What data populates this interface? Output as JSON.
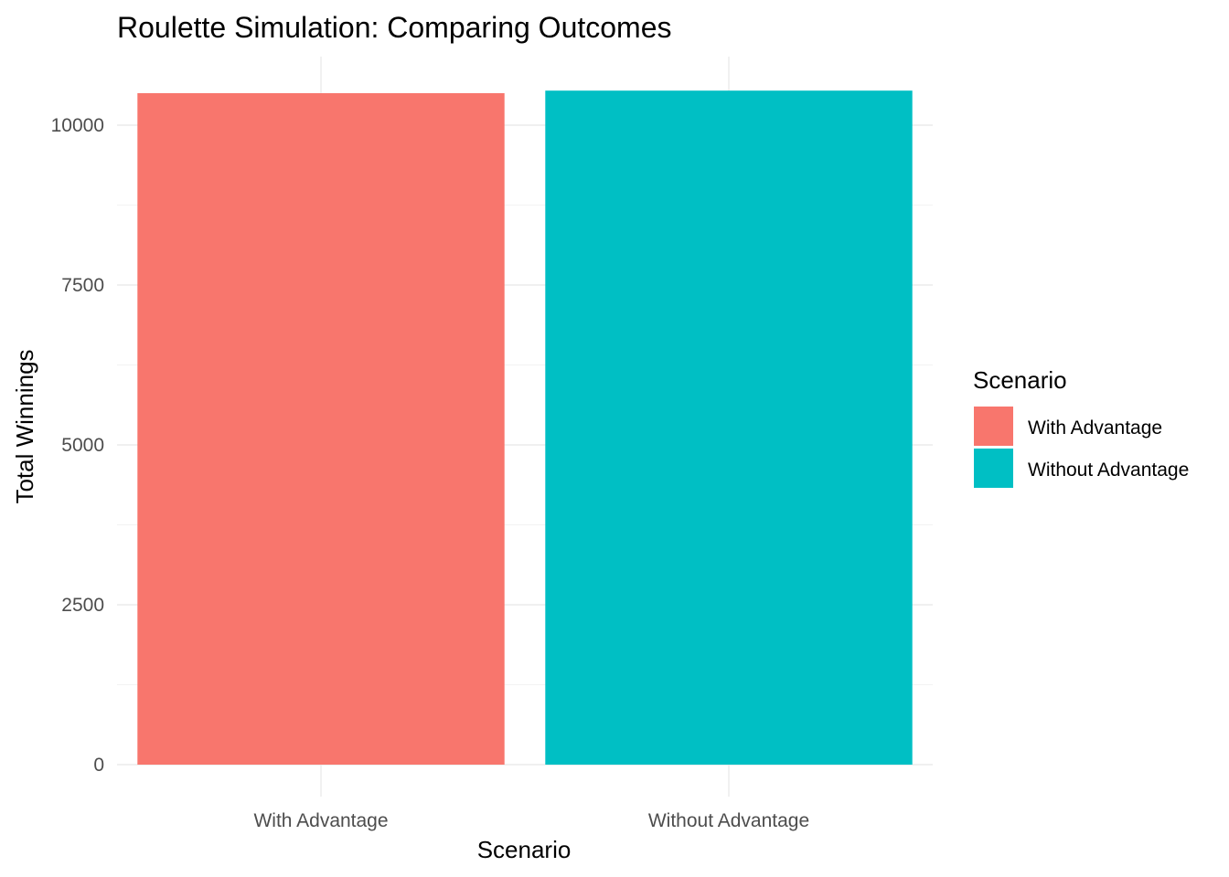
{
  "chart_data": {
    "type": "bar",
    "title": "Roulette Simulation: Comparing Outcomes",
    "xlabel": "Scenario",
    "ylabel": "Total Winnings",
    "categories": [
      "With Advantage",
      "Without Advantage"
    ],
    "values": [
      10500,
      10540
    ],
    "colors": [
      "#F8766D",
      "#00BFC4"
    ],
    "ylim": [
      0,
      11000
    ],
    "yticks": [
      0,
      2500,
      5000,
      7500,
      10000
    ],
    "grid": true,
    "legend": {
      "title": "Scenario",
      "placement": "right",
      "entries": [
        {
          "label": "With Advantage",
          "color": "#F8766D"
        },
        {
          "label": "Without Advantage",
          "color": "#00BFC4"
        }
      ]
    }
  }
}
